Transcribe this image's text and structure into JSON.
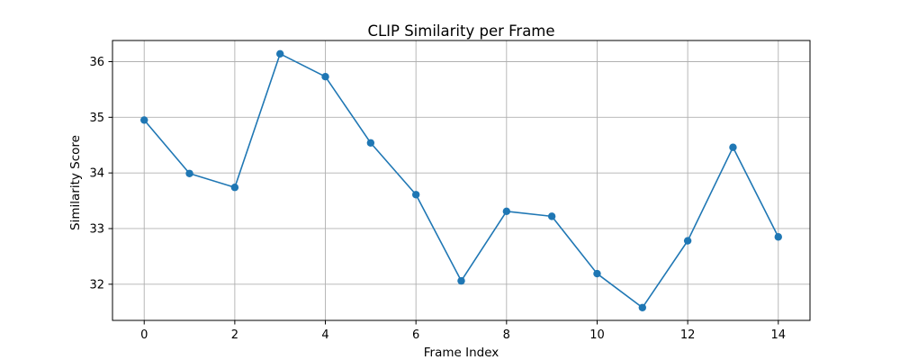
{
  "chart_data": {
    "type": "line",
    "title": "CLIP Similarity per Frame",
    "xlabel": "Frame Index",
    "ylabel": "Similarity Score",
    "x": [
      0,
      1,
      2,
      3,
      4,
      5,
      6,
      7,
      8,
      9,
      10,
      11,
      12,
      13,
      14
    ],
    "series": [
      {
        "values": [
          34.95,
          33.99,
          33.74,
          36.14,
          35.73,
          34.54,
          33.61,
          32.06,
          33.31,
          33.22,
          32.19,
          31.58,
          32.78,
          34.46,
          32.85
        ],
        "color": "#1f77b4",
        "marker": "circle"
      }
    ],
    "xticks": [
      0,
      2,
      4,
      6,
      8,
      10,
      12,
      14
    ],
    "yticks": [
      32,
      33,
      34,
      35,
      36
    ],
    "xlim": [
      -0.7,
      14.7
    ],
    "ylim": [
      31.35,
      36.38
    ],
    "grid": true,
    "legend": "none"
  }
}
